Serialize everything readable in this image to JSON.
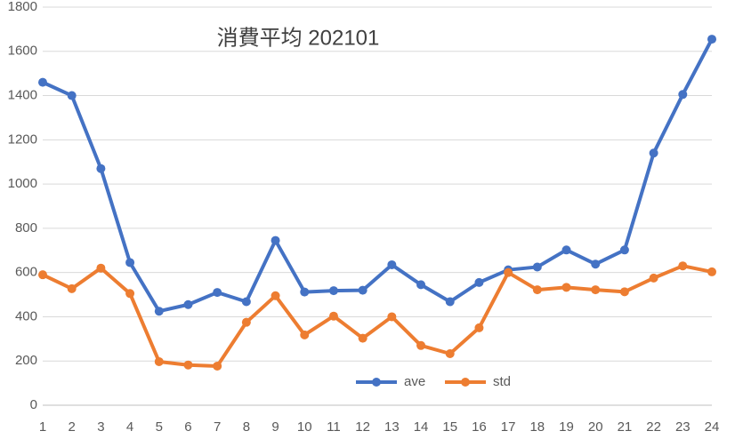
{
  "chart_data": {
    "type": "line",
    "title": "消費平均 202101",
    "categories": [
      "1",
      "2",
      "3",
      "4",
      "5",
      "6",
      "7",
      "8",
      "9",
      "10",
      "11",
      "12",
      "13",
      "14",
      "15",
      "16",
      "17",
      "18",
      "19",
      "20",
      "21",
      "22",
      "23",
      "24"
    ],
    "series": [
      {
        "name": "ave",
        "color": "#4472c4",
        "values": [
          1460,
          1400,
          1070,
          645,
          425,
          455,
          510,
          468,
          745,
          512,
          518,
          520,
          635,
          545,
          468,
          555,
          612,
          625,
          702,
          638,
          702,
          1140,
          1405,
          1655
        ]
      },
      {
        "name": "std",
        "color": "#ed7d31",
        "values": [
          590,
          527,
          620,
          505,
          197,
          182,
          177,
          375,
          495,
          318,
          403,
          303,
          400,
          270,
          233,
          350,
          600,
          522,
          533,
          522,
          513,
          575,
          630,
          603
        ]
      }
    ],
    "ylim": [
      0,
      1800
    ],
    "yticks": [
      0,
      200,
      400,
      600,
      800,
      1000,
      1200,
      1400,
      1600,
      1800
    ],
    "grid": true
  }
}
